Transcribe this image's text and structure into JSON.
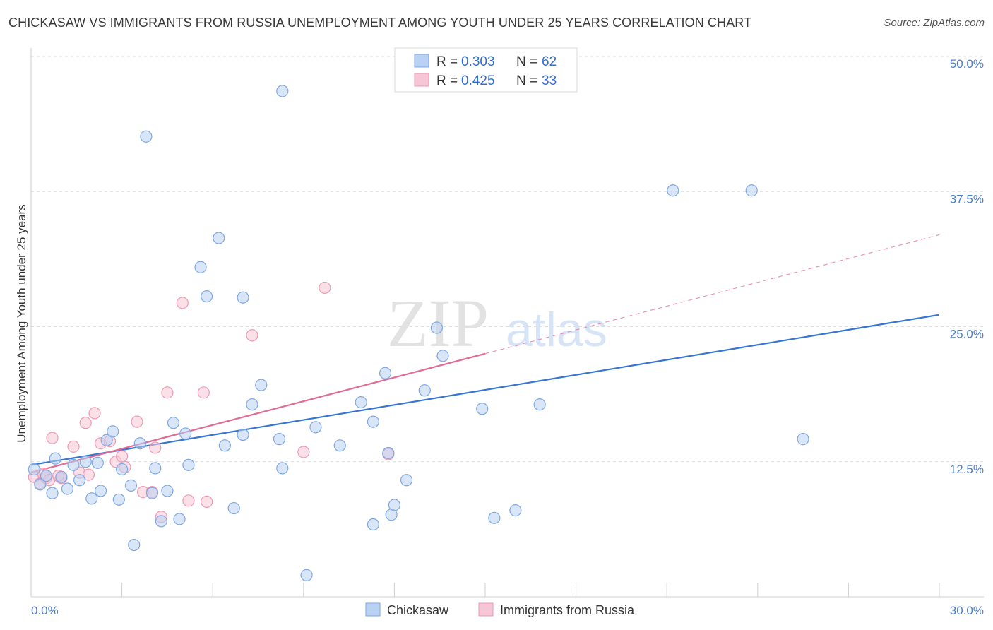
{
  "header": {
    "title": "CHICKASAW VS IMMIGRANTS FROM RUSSIA UNEMPLOYMENT AMONG YOUTH UNDER 25 YEARS CORRELATION CHART",
    "source": "Source: ZipAtlas.com"
  },
  "watermark": {
    "zip": "ZIP",
    "atlas": "atlas"
  },
  "legend": {
    "rows": [
      {
        "r_label": "R = ",
        "r_value": "0.303",
        "n_label": "N = ",
        "n_value": "62"
      },
      {
        "r_label": "R = ",
        "r_value": "0.425",
        "n_label": "N = ",
        "n_value": "33"
      }
    ]
  },
  "bottom_legend": [
    "Chickasaw",
    "Immigrants from Russia"
  ],
  "colors": {
    "blue_fill": "#b9d2f3",
    "blue_stroke": "#7ea8e3",
    "blue_line": "#3575d3",
    "pink_fill": "#f7c6d6",
    "pink_stroke": "#ec9ab6",
    "pink_line": "#e06b93",
    "grid": "#dcdcdc",
    "tick_text": "#4a7fcf"
  },
  "chart_data": {
    "type": "scatter",
    "title": "CHICKASAW VS IMMIGRANTS FROM RUSSIA UNEMPLOYMENT AMONG YOUTH UNDER 25 YEARS CORRELATION CHART",
    "xlabel": "",
    "ylabel": "Unemployment Among Youth under 25 years",
    "xlim": [
      0,
      30
    ],
    "ylim": [
      0,
      50
    ],
    "x_ticks": [
      "0.0%",
      "30.0%"
    ],
    "y_ticks": [
      {
        "value": 12.5,
        "label": "12.5%"
      },
      {
        "value": 25.0,
        "label": "25.0%"
      },
      {
        "value": 37.5,
        "label": "37.5%"
      },
      {
        "value": 50.0,
        "label": "50.0%"
      }
    ],
    "grid": true,
    "legend_position": "top-center",
    "series": [
      {
        "name": "Chickasaw",
        "points": [
          [
            0.1,
            11.8
          ],
          [
            0.3,
            10.4
          ],
          [
            0.5,
            11.2
          ],
          [
            0.7,
            9.6
          ],
          [
            0.8,
            12.8
          ],
          [
            1.0,
            11.1
          ],
          [
            1.2,
            10.0
          ],
          [
            1.4,
            12.2
          ],
          [
            1.6,
            10.8
          ],
          [
            1.8,
            12.5
          ],
          [
            2.0,
            9.1
          ],
          [
            2.2,
            12.4
          ],
          [
            2.3,
            9.8
          ],
          [
            2.5,
            14.5
          ],
          [
            2.7,
            15.3
          ],
          [
            2.9,
            9.0
          ],
          [
            3.0,
            11.8
          ],
          [
            3.3,
            10.3
          ],
          [
            3.6,
            14.2
          ],
          [
            3.8,
            42.6
          ],
          [
            4.0,
            9.6
          ],
          [
            4.1,
            11.9
          ],
          [
            4.3,
            7.0
          ],
          [
            4.5,
            9.8
          ],
          [
            4.7,
            16.1
          ],
          [
            4.9,
            7.2
          ],
          [
            5.1,
            15.1
          ],
          [
            5.2,
            12.2
          ],
          [
            5.6,
            30.5
          ],
          [
            5.8,
            27.8
          ],
          [
            6.2,
            33.2
          ],
          [
            6.4,
            14.0
          ],
          [
            6.7,
            8.2
          ],
          [
            7.0,
            15.0
          ],
          [
            7.0,
            27.7
          ],
          [
            7.3,
            17.8
          ],
          [
            7.6,
            19.6
          ],
          [
            8.2,
            14.6
          ],
          [
            8.3,
            46.8
          ],
          [
            8.3,
            11.9
          ],
          [
            9.1,
            2.0
          ],
          [
            9.4,
            15.7
          ],
          [
            10.2,
            14.0
          ],
          [
            10.9,
            18.0
          ],
          [
            11.3,
            16.2
          ],
          [
            11.3,
            6.7
          ],
          [
            11.7,
            20.7
          ],
          [
            11.8,
            13.3
          ],
          [
            11.9,
            7.6
          ],
          [
            12.0,
            8.5
          ],
          [
            12.4,
            10.8
          ],
          [
            13.0,
            19.1
          ],
          [
            13.4,
            24.9
          ],
          [
            13.6,
            22.3
          ],
          [
            14.9,
            17.4
          ],
          [
            15.3,
            7.3
          ],
          [
            16.0,
            8.0
          ],
          [
            16.8,
            17.8
          ],
          [
            21.2,
            37.6
          ],
          [
            23.8,
            37.6
          ],
          [
            25.5,
            14.6
          ],
          [
            3.4,
            4.8
          ]
        ],
        "trend": {
          "x0": 0,
          "y0": 12.2,
          "x1": 30,
          "y1": 26.1
        }
      },
      {
        "name": "Immigrants from Russia",
        "points": [
          [
            0.1,
            11.1
          ],
          [
            0.3,
            10.5
          ],
          [
            0.5,
            11.0
          ],
          [
            0.7,
            14.7
          ],
          [
            1.0,
            11.0
          ],
          [
            1.4,
            13.9
          ],
          [
            1.6,
            11.5
          ],
          [
            1.8,
            16.1
          ],
          [
            1.9,
            11.3
          ],
          [
            2.1,
            17.0
          ],
          [
            2.3,
            14.2
          ],
          [
            2.6,
            14.4
          ],
          [
            2.8,
            12.5
          ],
          [
            3.0,
            13.0
          ],
          [
            3.1,
            12.0
          ],
          [
            3.5,
            16.2
          ],
          [
            3.7,
            9.7
          ],
          [
            4.0,
            9.7
          ],
          [
            4.1,
            13.8
          ],
          [
            4.3,
            7.4
          ],
          [
            4.5,
            18.9
          ],
          [
            5.0,
            27.2
          ],
          [
            5.2,
            8.9
          ],
          [
            5.7,
            18.9
          ],
          [
            5.8,
            8.8
          ],
          [
            7.3,
            24.2
          ],
          [
            9.0,
            13.4
          ],
          [
            9.7,
            28.6
          ],
          [
            11.8,
            13.2
          ],
          [
            1.0,
            11.0
          ],
          [
            0.4,
            11.4
          ],
          [
            0.6,
            10.8
          ],
          [
            0.9,
            11.2
          ]
        ],
        "trend_solid": {
          "x0": 0,
          "y0": 11.5,
          "x1": 15.0,
          "y1": 22.5
        },
        "trend_dashed": {
          "x0": 15.0,
          "y0": 22.5,
          "x1": 30,
          "y1": 33.5
        }
      }
    ]
  }
}
